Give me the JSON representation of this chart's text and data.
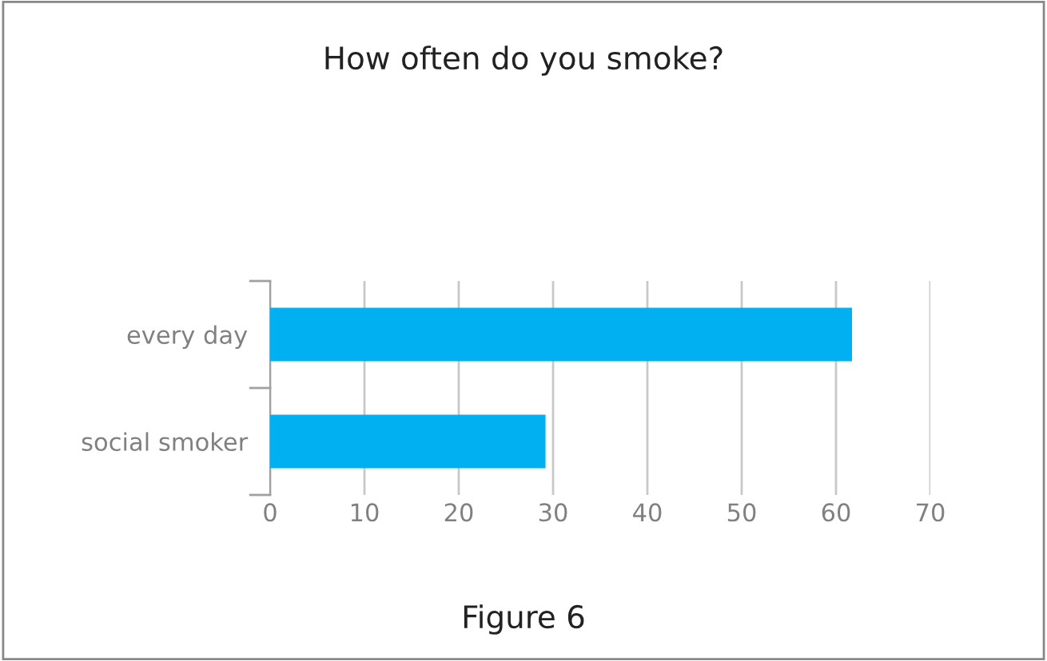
{
  "chart_data": {
    "type": "bar",
    "orientation": "horizontal",
    "title": "How often do you smoke?",
    "categories": [
      "every day",
      "social smoker"
    ],
    "values": [
      61.7,
      29.2
    ],
    "color": "#00b0f0",
    "xlim": [
      0,
      70
    ],
    "xticks": [
      0,
      10,
      20,
      30,
      40,
      50,
      60,
      70
    ],
    "grid": "x",
    "annotations": [
      "Figure 6"
    ]
  }
}
